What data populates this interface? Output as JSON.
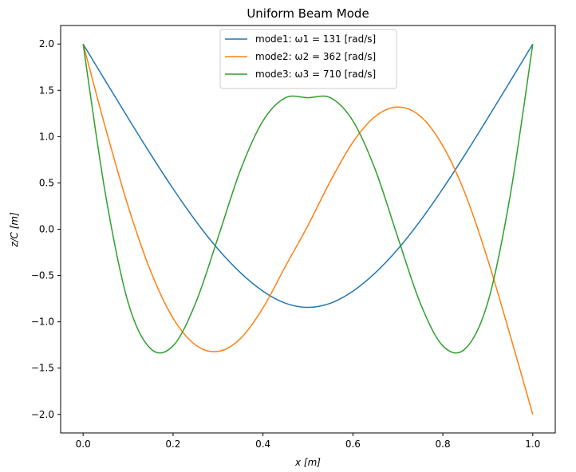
{
  "chart_data": {
    "type": "line",
    "title": "Uniform Beam Mode",
    "xlabel": "x [m]",
    "ylabel": "z/C [m]",
    "xlim": [
      -0.05,
      1.05
    ],
    "ylim": [
      -2.2,
      2.2
    ],
    "xticks": [
      0.0,
      0.2,
      0.4,
      0.6,
      0.8,
      1.0
    ],
    "xtick_labels": [
      "0.0",
      "0.2",
      "0.4",
      "0.6",
      "0.8",
      "1.0"
    ],
    "yticks": [
      -2.0,
      -1.5,
      -1.0,
      -0.5,
      0.0,
      0.5,
      1.0,
      1.5,
      2.0
    ],
    "ytick_labels": [
      "−2.0",
      "−1.5",
      "−1.0",
      "−0.5",
      "0.0",
      "0.5",
      "1.0",
      "1.5",
      "2.0"
    ],
    "grid": false,
    "legend_position": "top-center",
    "series": [
      {
        "name": "mode1: ω1 = 131 [rad/s]",
        "color": "#1f77b4",
        "x": [
          0.0,
          0.05,
          0.1,
          0.15,
          0.2,
          0.25,
          0.3,
          0.35,
          0.4,
          0.45,
          0.5,
          0.55,
          0.6,
          0.65,
          0.7,
          0.75,
          0.8,
          0.85,
          0.9,
          0.95,
          1.0
        ],
        "y": [
          2.0,
          1.599,
          1.201,
          0.811,
          0.438,
          0.092,
          -0.214,
          -0.47,
          -0.669,
          -0.799,
          -0.844,
          -0.799,
          -0.669,
          -0.47,
          -0.214,
          0.092,
          0.438,
          0.811,
          1.201,
          1.599,
          2.0
        ]
      },
      {
        "name": "mode2: ω2 = 362 [rad/s]",
        "color": "#ff7f0e",
        "x": [
          0.0,
          0.05,
          0.1,
          0.15,
          0.2,
          0.25,
          0.3,
          0.35,
          0.4,
          0.45,
          0.5,
          0.55,
          0.6,
          0.65,
          0.7,
          0.75,
          0.8,
          0.85,
          0.9,
          0.95,
          1.0
        ],
        "y": [
          2.0,
          1.09,
          0.25,
          -0.45,
          -0.96,
          -1.25,
          -1.32,
          -1.18,
          -0.85,
          -0.4,
          0.04,
          0.52,
          0.94,
          1.22,
          1.32,
          1.22,
          0.9,
          0.38,
          -0.33,
          -1.15,
          -2.0
        ]
      },
      {
        "name": "mode3: ω3 = 710 [rad/s]",
        "color": "#2ca02c",
        "x": [
          0.0,
          0.05,
          0.1,
          0.15,
          0.2,
          0.25,
          0.3,
          0.35,
          0.4,
          0.45,
          0.5,
          0.55,
          0.6,
          0.65,
          0.7,
          0.75,
          0.8,
          0.85,
          0.9,
          0.95,
          1.0
        ],
        "y": [
          2.0,
          0.37,
          -0.79,
          -1.29,
          -1.26,
          -0.8,
          -0.09,
          0.64,
          1.17,
          1.42,
          1.42,
          1.42,
          1.17,
          0.64,
          -0.09,
          -0.8,
          -1.26,
          -1.29,
          -0.79,
          0.37,
          2.0
        ]
      }
    ]
  }
}
